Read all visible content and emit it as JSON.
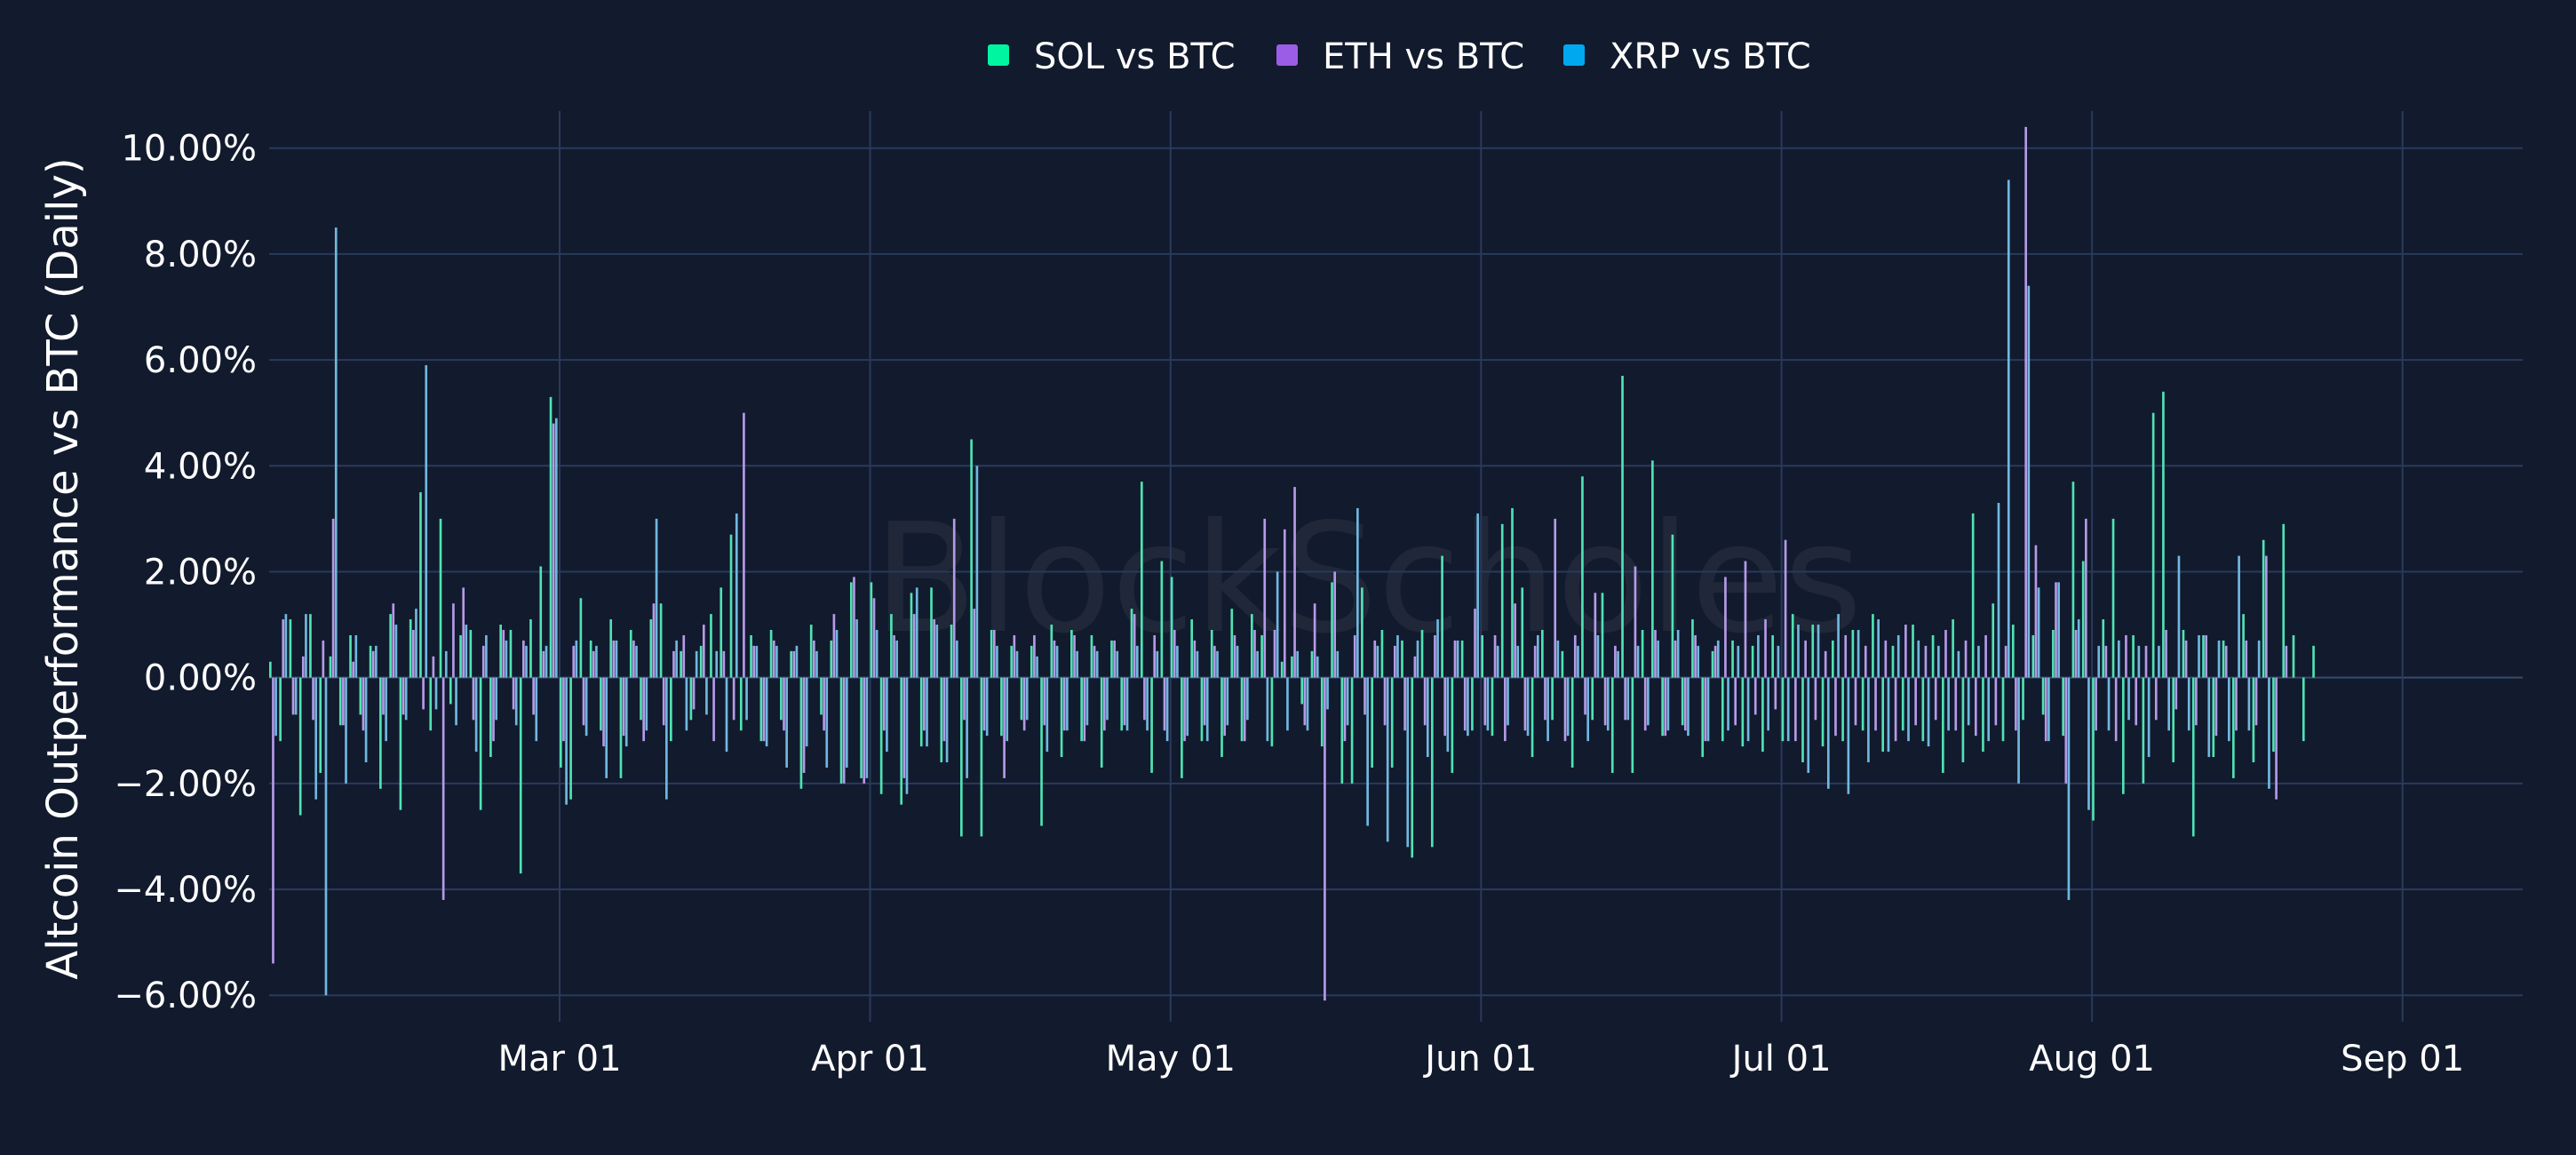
{
  "chart_data": {
    "type": "bar",
    "watermark": "BlockScholes",
    "ylabel": "Altcoin Outperformance vs BTC (Daily)",
    "ylim": [
      -0.065,
      0.107
    ],
    "y_ticks": [
      {
        "value": 0.1,
        "label": "10.00%"
      },
      {
        "value": 0.08,
        "label": "8.00%"
      },
      {
        "value": 0.06,
        "label": "6.00%"
      },
      {
        "value": 0.04,
        "label": "4.00%"
      },
      {
        "value": 0.02,
        "label": "2.00%"
      },
      {
        "value": 0.0,
        "label": "0.00%"
      },
      {
        "value": -0.02,
        "label": "−2.00%"
      },
      {
        "value": -0.04,
        "label": "−4.00%"
      },
      {
        "value": -0.06,
        "label": "−6.00%"
      }
    ],
    "xlim": [
      "2024-02-01",
      "2024-09-13"
    ],
    "x_ticks": [
      {
        "date": "2024-03-01",
        "label": "Mar 01"
      },
      {
        "date": "2024-04-01",
        "label": "Apr 01"
      },
      {
        "date": "2024-05-01",
        "label": "May 01"
      },
      {
        "date": "2024-06-01",
        "label": "Jun 01"
      },
      {
        "date": "2024-07-01",
        "label": "Jul 01"
      },
      {
        "date": "2024-08-01",
        "label": "Aug 01"
      },
      {
        "date": "2024-09-01",
        "label": "Sep 01"
      }
    ],
    "legend_position": "top-center",
    "grid": true,
    "start_date": "2024-02-01",
    "series": [
      {
        "name": "SOL vs BTC",
        "legend_color": "#00f5a0",
        "bar_color": "#4fe3b4",
        "values": [
          0.003,
          -0.012,
          0.011,
          -0.026,
          0.012,
          -0.018,
          0.004,
          -0.009,
          0.008,
          -0.007,
          0.006,
          -0.021,
          0.012,
          -0.025,
          0.011,
          0.035,
          -0.01,
          0.03,
          -0.005,
          0.008,
          0.009,
          -0.025,
          -0.015,
          0.01,
          0.009,
          -0.037,
          0.011,
          0.021,
          0.053,
          -0.017,
          -0.023,
          0.015,
          0.007,
          -0.01,
          0.011,
          -0.019,
          0.009,
          -0.008,
          0.011,
          0.014,
          -0.012,
          0.005,
          -0.008,
          0.006,
          0.012,
          0.017,
          0.027,
          -0.01,
          0.008,
          -0.012,
          0.009,
          -0.008,
          0.005,
          -0.021,
          0.01,
          -0.007,
          0.007,
          -0.02,
          0.018,
          -0.019,
          0.018,
          -0.022,
          0.012,
          -0.024,
          0.016,
          -0.013,
          0.017,
          -0.016,
          0.01,
          -0.03,
          0.045,
          -0.03,
          0.009,
          -0.011,
          0.006,
          -0.008,
          0.006,
          -0.028,
          0.01,
          -0.015,
          0.009,
          -0.012,
          0.008,
          -0.017,
          0.007,
          -0.01,
          0.013,
          0.037,
          -0.018,
          0.022,
          0.019,
          -0.019,
          0.011,
          -0.012,
          0.009,
          -0.015,
          0.013,
          -0.012,
          0.012,
          0.008,
          -0.013,
          0.003,
          0.004,
          -0.005,
          0.005,
          -0.013,
          0.018,
          -0.02,
          -0.02,
          0.017,
          -0.017,
          0.009,
          -0.017,
          0.007,
          -0.034,
          0.009,
          -0.032,
          0.023,
          -0.018,
          0.007,
          -0.01,
          0.008,
          -0.011,
          0.029,
          0.032,
          0.017,
          -0.015,
          0.009,
          -0.008,
          0.005,
          -0.017,
          0.038,
          -0.008,
          0.016,
          -0.018,
          0.057,
          -0.018,
          0.009,
          0.041,
          -0.011,
          0.027,
          -0.009,
          0.011,
          -0.015,
          0.005,
          -0.012,
          0.007,
          -0.013,
          0.006,
          -0.014,
          0.008,
          -0.012,
          0.012,
          -0.016,
          0.01,
          -0.013,
          0.007,
          -0.012,
          0.009,
          -0.01,
          0.012,
          -0.014,
          0.006,
          -0.01,
          0.01,
          -0.012,
          0.008,
          -0.018,
          0.011,
          -0.016,
          0.031,
          -0.014,
          0.014,
          -0.012,
          0.01,
          -0.008,
          0.008,
          -0.007,
          0.009,
          -0.011,
          0.037,
          0.022,
          -0.027,
          0.011,
          0.03,
          -0.022,
          0.008,
          -0.02,
          0.05,
          0.054,
          -0.016,
          0.009,
          -0.03,
          0.008,
          -0.015,
          0.007,
          -0.019,
          0.012,
          -0.016,
          0.026,
          -0.014,
          0.029,
          0.008,
          -0.012,
          0.006
        ],
        "bar_offset": 0
      },
      {
        "name": "ETH vs BTC",
        "legend_color": "#9b5de5",
        "bar_color": "#b59ae8",
        "values": [
          -0.054,
          0.011,
          -0.007,
          0.004,
          -0.008,
          0.007,
          0.03,
          -0.009,
          0.003,
          -0.01,
          0.005,
          -0.007,
          0.014,
          -0.007,
          0.009,
          -0.006,
          0.004,
          -0.042,
          0.014,
          0.017,
          -0.008,
          0.006,
          -0.012,
          0.009,
          -0.006,
          0.007,
          -0.007,
          0.005,
          0.048,
          -0.012,
          0.006,
          -0.009,
          0.005,
          -0.013,
          0.007,
          -0.011,
          0.007,
          -0.012,
          0.014,
          -0.009,
          0.005,
          0.008,
          -0.006,
          0.01,
          -0.012,
          0.005,
          -0.008,
          0.05,
          0.006,
          -0.012,
          0.007,
          -0.01,
          0.005,
          -0.018,
          0.007,
          -0.01,
          0.012,
          -0.02,
          0.019,
          -0.02,
          0.015,
          -0.01,
          0.008,
          -0.019,
          0.012,
          -0.01,
          0.011,
          -0.012,
          0.03,
          -0.008,
          0.013,
          -0.01,
          0.009,
          -0.019,
          0.008,
          -0.01,
          0.008,
          -0.009,
          0.007,
          -0.01,
          0.008,
          -0.012,
          0.006,
          -0.01,
          0.007,
          -0.009,
          0.012,
          -0.008,
          0.008,
          -0.01,
          0.009,
          -0.012,
          0.007,
          -0.009,
          0.006,
          -0.011,
          0.008,
          -0.012,
          0.009,
          0.03,
          0.009,
          0.028,
          0.036,
          -0.009,
          0.014,
          -0.061,
          0.02,
          -0.012,
          0.008,
          -0.007,
          0.007,
          -0.009,
          0.006,
          -0.01,
          0.004,
          -0.009,
          0.008,
          -0.011,
          0.007,
          -0.01,
          0.013,
          -0.009,
          0.008,
          -0.012,
          0.014,
          -0.01,
          0.006,
          -0.008,
          0.03,
          -0.012,
          0.008,
          -0.007,
          0.016,
          -0.009,
          0.006,
          -0.008,
          0.021,
          -0.01,
          0.009,
          -0.011,
          0.007,
          -0.01,
          0.008,
          -0.012,
          0.006,
          0.019,
          -0.009,
          0.022,
          -0.007,
          0.011,
          -0.006,
          0.026,
          -0.012,
          0.007,
          -0.008,
          0.005,
          -0.011,
          0.008,
          -0.009,
          0.006,
          -0.01,
          0.007,
          -0.012,
          0.01,
          -0.009,
          0.006,
          -0.008,
          0.009,
          -0.01,
          0.007,
          -0.011,
          0.008,
          -0.009,
          0.006,
          -0.01,
          0.104,
          0.025,
          -0.012,
          0.018,
          -0.02,
          0.009,
          0.03,
          -0.01,
          0.006,
          -0.012,
          0.008,
          -0.009,
          0.006,
          -0.008,
          0.009,
          -0.006,
          0.007,
          -0.009,
          0.008,
          -0.011,
          0.006,
          -0.01,
          0.007,
          -0.009,
          0.023,
          -0.023,
          0.006
        ],
        "bar_offset": 1
      },
      {
        "name": "XRP vs BTC",
        "legend_color": "#00a8f0",
        "bar_color": "#70b8e0",
        "values": [
          -0.011,
          0.012,
          -0.007,
          0.012,
          -0.023,
          -0.06,
          0.085,
          -0.02,
          0.008,
          -0.016,
          0.006,
          -0.012,
          0.01,
          -0.008,
          0.013,
          0.059,
          -0.006,
          0.005,
          -0.009,
          0.01,
          -0.014,
          0.008,
          -0.008,
          0.007,
          -0.009,
          0.006,
          -0.012,
          0.006,
          0.049,
          -0.024,
          0.007,
          -0.011,
          0.006,
          -0.019,
          0.007,
          -0.013,
          0.006,
          -0.01,
          0.03,
          -0.023,
          0.007,
          -0.01,
          0.005,
          -0.007,
          0.005,
          -0.014,
          0.031,
          -0.008,
          0.006,
          -0.013,
          0.006,
          -0.017,
          0.006,
          -0.013,
          0.005,
          -0.017,
          0.009,
          -0.017,
          0.011,
          -0.019,
          0.009,
          -0.014,
          0.007,
          -0.022,
          0.017,
          -0.013,
          0.01,
          -0.016,
          0.007,
          -0.019,
          0.04,
          -0.011,
          0.006,
          -0.012,
          0.005,
          -0.008,
          0.004,
          -0.014,
          0.006,
          -0.01,
          0.005,
          -0.009,
          0.005,
          -0.008,
          0.005,
          -0.01,
          0.006,
          -0.01,
          0.005,
          -0.012,
          0.006,
          -0.011,
          0.005,
          -0.012,
          0.005,
          -0.009,
          0.006,
          -0.008,
          0.005,
          -0.012,
          0.02,
          -0.01,
          0.005,
          -0.01,
          0.004,
          -0.006,
          0.005,
          -0.009,
          0.032,
          -0.028,
          0.006,
          -0.031,
          0.008,
          -0.032,
          0.007,
          -0.015,
          0.011,
          -0.014,
          0.007,
          -0.011,
          0.031,
          -0.01,
          0.006,
          -0.009,
          0.006,
          -0.011,
          0.008,
          -0.012,
          0.007,
          -0.011,
          0.006,
          -0.012,
          0.008,
          -0.01,
          0.005,
          -0.008,
          0.006,
          -0.009,
          0.007,
          -0.01,
          0.009,
          -0.011,
          0.006,
          -0.012,
          0.007,
          -0.01,
          0.006,
          -0.012,
          0.008,
          -0.01,
          0.006,
          -0.012,
          0.01,
          -0.018,
          0.01,
          -0.021,
          0.012,
          -0.022,
          0.009,
          -0.016,
          0.011,
          -0.014,
          0.008,
          -0.012,
          0.007,
          -0.013,
          0.006,
          -0.01,
          0.005,
          -0.009,
          0.006,
          -0.012,
          0.033,
          0.094,
          -0.02,
          0.074,
          0.017,
          -0.012,
          0.018,
          -0.042,
          0.011,
          -0.025,
          0.006,
          -0.01,
          0.007,
          -0.008,
          0.006,
          -0.015,
          0.006,
          -0.01,
          0.023,
          -0.01,
          0.008,
          -0.015,
          0.007,
          -0.012,
          0.023,
          -0.01,
          0.007,
          -0.021
        ],
        "bar_offset": 2
      }
    ]
  }
}
